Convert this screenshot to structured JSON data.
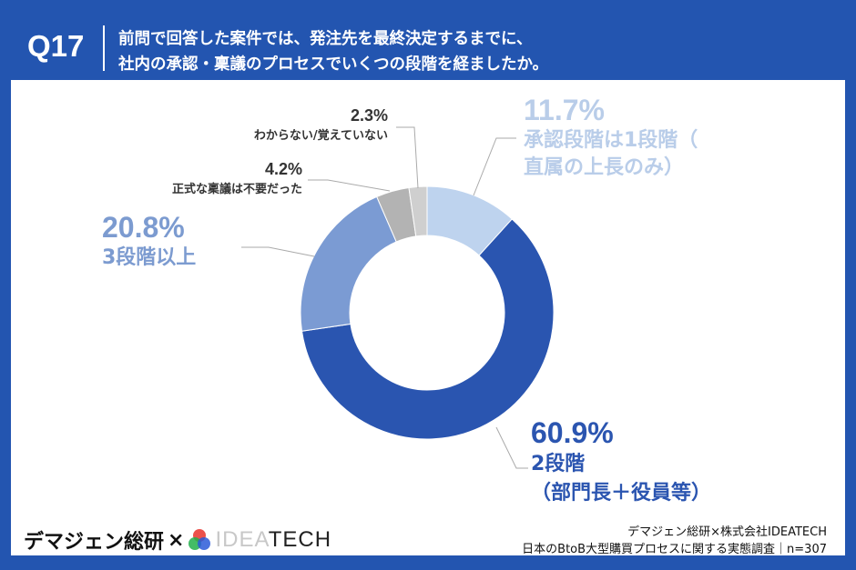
{
  "header": {
    "question_no": "Q17",
    "question_line1": "前問で回答した案件では、発注先を最終決定するまでに、",
    "question_line2": "社内の承認・稟議のプロセスでいくつの段階を経ましたか。"
  },
  "chart_data": {
    "type": "pie",
    "donut": true,
    "start": "top, clockwise",
    "slices": [
      {
        "pct": "11.7%",
        "value": 11.7,
        "label1": "承認段階は1段階（",
        "label2": "直属の上長のみ）",
        "color": "#bed3ee",
        "text_color": "#b9cde9"
      },
      {
        "pct": "60.9%",
        "value": 60.9,
        "label1": "2段階",
        "label2": "（部門長＋役員等）",
        "color": "#2a55b0",
        "text_color": "#2b55b0"
      },
      {
        "pct": "20.8%",
        "value": 20.8,
        "label1": "3段階以上",
        "label2": "",
        "color": "#7b9bd3",
        "text_color": "#7c9bd0"
      },
      {
        "pct": "4.2%",
        "value": 4.2,
        "label1": "正式な稟議は不要だった",
        "label2": "",
        "color": "#b3b3b3",
        "text_color": "#333333"
      },
      {
        "pct": "2.3%",
        "value": 2.3,
        "label1": "わからない/覚えていない",
        "label2": "",
        "color": "#cfcfcf",
        "text_color": "#333333"
      }
    ]
  },
  "footer": {
    "logo_left": "デマジェン総研",
    "logo_times": "×",
    "logo_idea": "IDEA",
    "logo_tech": "TECH",
    "source_line1": "デマジェン総研×株式会社IDEATECH",
    "source_line2": "日本のBtoB大型購買プロセスに関する実態調査｜n=307"
  },
  "colors": {
    "brand_blue": "#2355b0"
  }
}
